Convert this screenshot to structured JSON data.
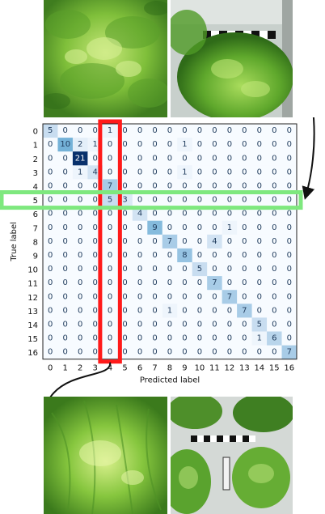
{
  "chart_data": {
    "type": "heatmap",
    "title": "",
    "xlabel": "Predicted label",
    "ylabel": "True label",
    "x_ticks": [
      "0",
      "1",
      "2",
      "3",
      "4",
      "5",
      "6",
      "7",
      "8",
      "9",
      "10",
      "11",
      "12",
      "13",
      "14",
      "15",
      "16"
    ],
    "y_ticks": [
      "0",
      "1",
      "2",
      "3",
      "4",
      "5",
      "6",
      "7",
      "8",
      "9",
      "10",
      "11",
      "12",
      "13",
      "14",
      "15",
      "16"
    ],
    "matrix": [
      [
        5,
        0,
        0,
        0,
        1,
        0,
        0,
        0,
        0,
        0,
        0,
        0,
        0,
        0,
        0,
        0,
        0
      ],
      [
        0,
        10,
        2,
        1,
        0,
        0,
        0,
        0,
        0,
        1,
        0,
        0,
        0,
        0,
        0,
        0,
        0
      ],
      [
        0,
        0,
        21,
        0,
        0,
        0,
        0,
        0,
        0,
        0,
        0,
        0,
        0,
        0,
        0,
        0,
        0
      ],
      [
        0,
        0,
        1,
        4,
        0,
        0,
        0,
        0,
        0,
        1,
        0,
        0,
        0,
        0,
        0,
        0,
        0
      ],
      [
        0,
        0,
        0,
        0,
        7,
        0,
        0,
        0,
        0,
        0,
        0,
        0,
        0,
        0,
        0,
        0,
        0
      ],
      [
        0,
        0,
        0,
        0,
        5,
        3,
        0,
        0,
        0,
        0,
        0,
        0,
        0,
        0,
        0,
        0,
        0
      ],
      [
        0,
        0,
        0,
        0,
        0,
        0,
        4,
        0,
        0,
        0,
        0,
        0,
        0,
        0,
        0,
        0,
        0
      ],
      [
        0,
        0,
        0,
        0,
        0,
        0,
        0,
        9,
        0,
        0,
        0,
        0,
        1,
        0,
        0,
        0,
        0
      ],
      [
        0,
        0,
        0,
        0,
        0,
        0,
        0,
        0,
        7,
        0,
        0,
        4,
        0,
        0,
        0,
        0,
        0
      ],
      [
        0,
        0,
        0,
        0,
        0,
        0,
        0,
        0,
        0,
        8,
        0,
        0,
        0,
        0,
        0,
        0,
        0
      ],
      [
        0,
        0,
        0,
        0,
        0,
        0,
        0,
        0,
        0,
        0,
        5,
        0,
        0,
        0,
        0,
        0,
        0
      ],
      [
        0,
        0,
        0,
        0,
        0,
        0,
        0,
        0,
        0,
        0,
        0,
        7,
        0,
        0,
        0,
        0,
        0
      ],
      [
        0,
        0,
        0,
        0,
        0,
        0,
        0,
        0,
        0,
        0,
        0,
        0,
        7,
        0,
        0,
        0,
        0
      ],
      [
        0,
        0,
        0,
        0,
        0,
        0,
        0,
        0,
        1,
        0,
        0,
        0,
        0,
        7,
        0,
        0,
        0
      ],
      [
        0,
        0,
        0,
        0,
        0,
        0,
        0,
        0,
        0,
        0,
        0,
        0,
        0,
        0,
        5,
        0,
        0
      ],
      [
        0,
        0,
        0,
        0,
        0,
        0,
        0,
        0,
        0,
        0,
        0,
        0,
        0,
        0,
        1,
        6,
        0
      ],
      [
        0,
        0,
        0,
        0,
        0,
        0,
        0,
        0,
        0,
        0,
        0,
        0,
        0,
        0,
        0,
        0,
        7
      ]
    ],
    "colormap": "Blues",
    "value_range": [
      0,
      21
    ],
    "highlight_column": {
      "index": 4,
      "color": "#ff1a1a"
    },
    "highlight_row": {
      "index": 5,
      "color": "#7ee87e"
    }
  },
  "photos": [
    {
      "name": "photo-top-left",
      "subject": "lettuce-closeup"
    },
    {
      "name": "photo-top-right",
      "subject": "lettuce-with-checker-ruler"
    },
    {
      "name": "photo-bottom-left",
      "subject": "frilly-lettuce-closeup"
    },
    {
      "name": "photo-bottom-right",
      "subject": "lettuce-plants-with-checker-ruler"
    }
  ],
  "arrows": [
    {
      "from": "photo-top-right",
      "to": "highlight-row",
      "color": "#111111"
    },
    {
      "from": "highlight-column",
      "to": "photo-bottom-left",
      "color": "#111111"
    }
  ]
}
